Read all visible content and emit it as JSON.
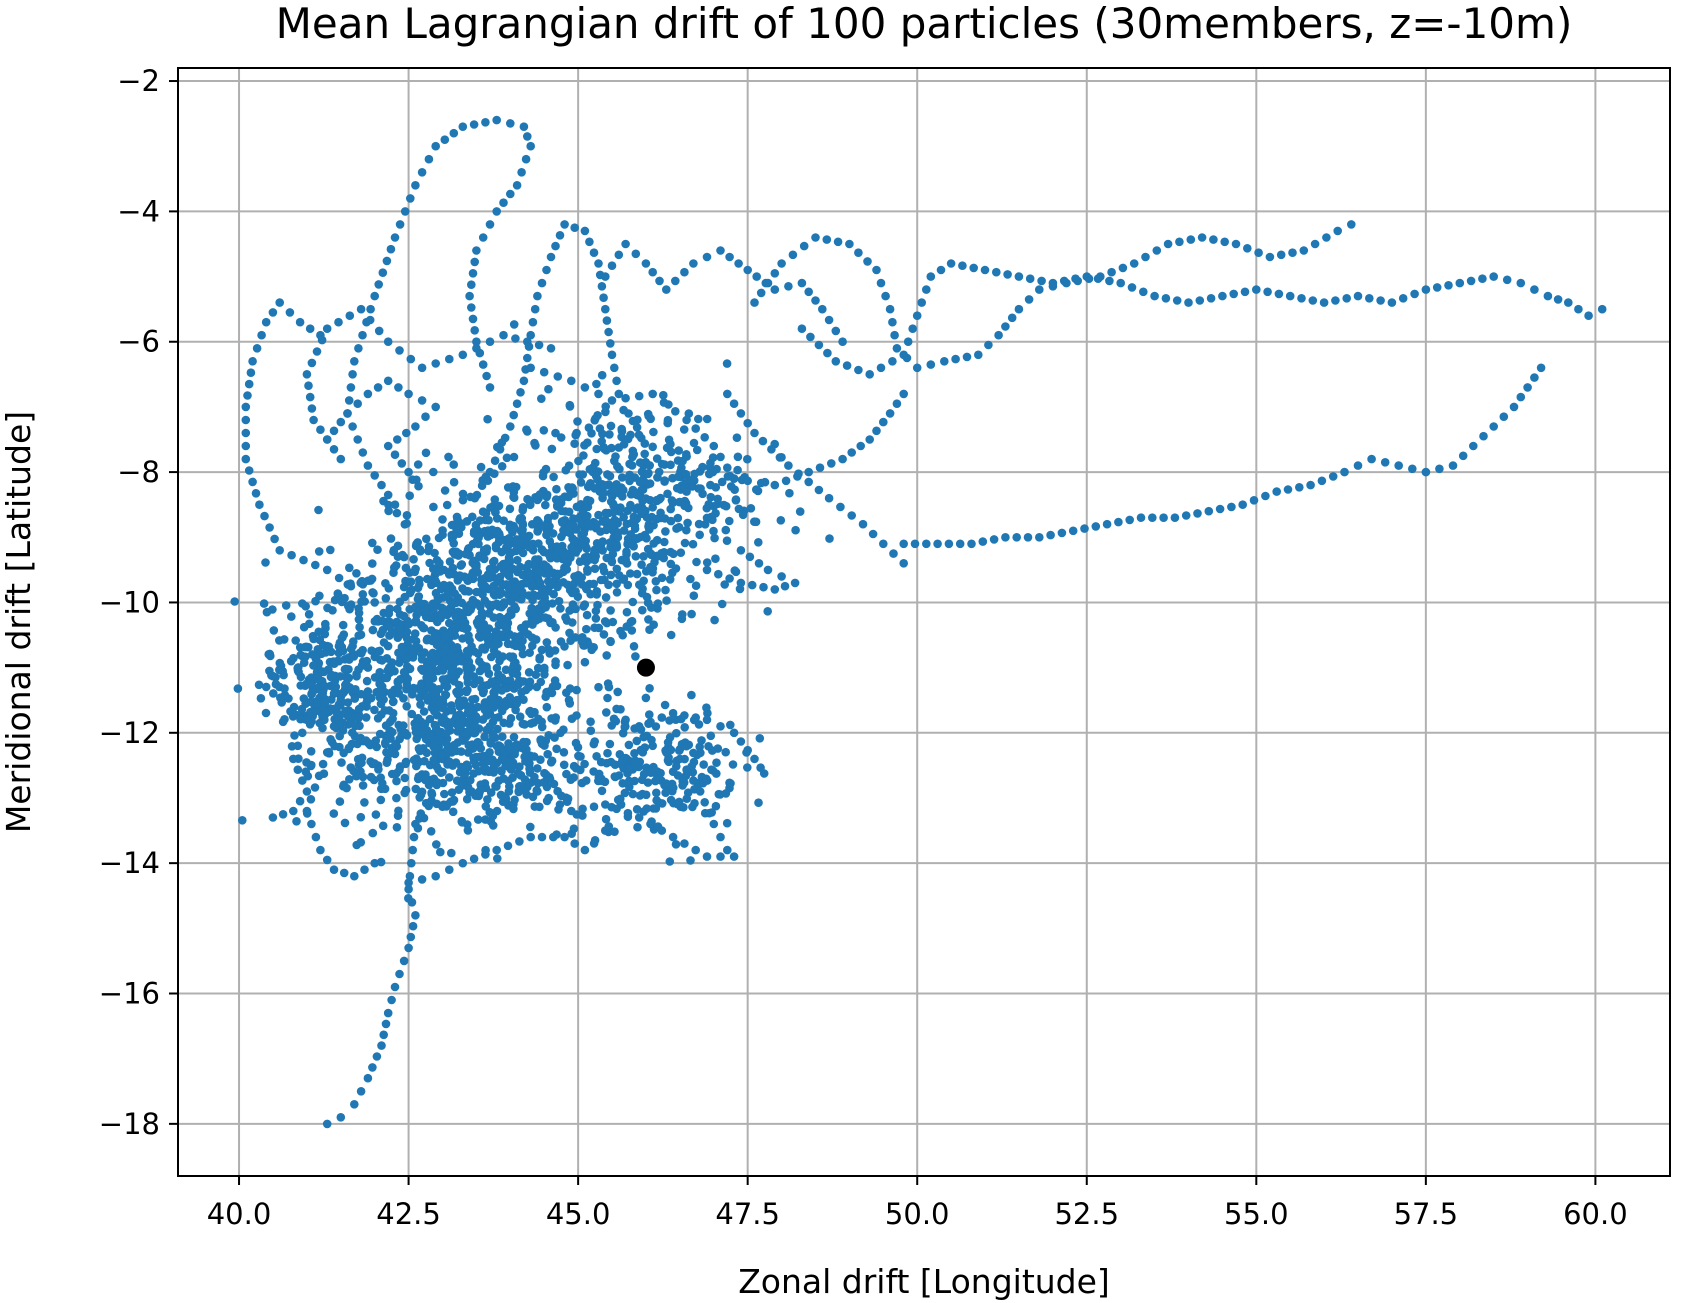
{
  "chart_data": {
    "type": "scatter",
    "title": "Mean Lagrangian drift of 100 particles (30members, z=-10m)",
    "xlabel": "Zonal drift [Longitude]",
    "ylabel": "Meridional drift [Latitude]",
    "xlim": [
      39.1,
      61.1
    ],
    "ylim": [
      -18.8,
      -1.8
    ],
    "xticks": [
      40.0,
      42.5,
      45.0,
      47.5,
      50.0,
      52.5,
      55.0,
      57.5,
      60.0
    ],
    "xtick_labels": [
      "40.0",
      "42.5",
      "45.0",
      "47.5",
      "50.0",
      "52.5",
      "55.0",
      "57.5",
      "60.0"
    ],
    "yticks": [
      -2,
      -4,
      -6,
      -8,
      -10,
      -12,
      -14,
      -16,
      -18
    ],
    "ytick_labels": [
      "−2",
      "−4",
      "−6",
      "−8",
      "−10",
      "−12",
      "−14",
      "−16",
      "−18"
    ],
    "grid": true,
    "colors": {
      "particles": "#1f77b4",
      "origin": "#000000"
    },
    "release_point": {
      "x": 46.0,
      "y": -11.0
    },
    "series": [
      {
        "trajectories": [
          [
            [
              44.0,
              -11.2
            ],
            [
              43.5,
              -11.8
            ],
            [
              43.0,
              -12.6
            ],
            [
              42.6,
              -13.4
            ],
            [
              42.5,
              -14.4
            ],
            [
              42.6,
              -14.8
            ],
            [
              42.5,
              -15.3
            ],
            [
              42.3,
              -15.9
            ],
            [
              42.2,
              -16.3
            ],
            [
              42.1,
              -16.8
            ],
            [
              41.9,
              -17.3
            ],
            [
              41.7,
              -17.7
            ],
            [
              41.5,
              -17.9
            ],
            [
              41.3,
              -18.0
            ]
          ],
          [
            [
              42.5,
              -14.3
            ],
            [
              42.9,
              -14.2
            ],
            [
              43.3,
              -14.0
            ],
            [
              43.8,
              -13.8
            ],
            [
              44.3,
              -13.6
            ],
            [
              44.8,
              -13.6
            ],
            [
              45.1,
              -13.8
            ],
            [
              45.4,
              -13.5
            ]
          ],
          [
            [
              41.5,
              -11.5
            ],
            [
              41.3,
              -12.3
            ],
            [
              41.0,
              -13.2
            ],
            [
              41.2,
              -13.8
            ],
            [
              41.4,
              -14.1
            ],
            [
              41.7,
              -14.2
            ],
            [
              42.0,
              -14.0
            ]
          ],
          [
            [
              42.0,
              -10.0
            ],
            [
              41.3,
              -9.5
            ],
            [
              40.6,
              -9.2
            ],
            [
              40.3,
              -8.5
            ],
            [
              40.1,
              -7.8
            ],
            [
              40.1,
              -7.0
            ],
            [
              40.2,
              -6.3
            ],
            [
              40.4,
              -5.7
            ],
            [
              40.6,
              -5.4
            ],
            [
              40.9,
              -5.7
            ],
            [
              41.2,
              -5.9
            ]
          ],
          [
            [
              42.3,
              -8.5
            ],
            [
              41.9,
              -7.9
            ],
            [
              41.6,
              -7.1
            ],
            [
              41.7,
              -6.3
            ],
            [
              42.0,
              -5.3
            ],
            [
              42.3,
              -4.4
            ],
            [
              42.6,
              -3.6
            ],
            [
              42.9,
              -3.0
            ],
            [
              43.3,
              -2.7
            ],
            [
              43.8,
              -2.6
            ],
            [
              44.2,
              -2.7
            ],
            [
              44.3,
              -3.0
            ],
            [
              44.1,
              -3.6
            ],
            [
              43.8,
              -4.0
            ],
            [
              43.5,
              -4.6
            ],
            [
              43.4,
              -5.3
            ],
            [
              43.5,
              -6.0
            ],
            [
              43.7,
              -6.7
            ]
          ],
          [
            [
              41.5,
              -7.8
            ],
            [
              41.1,
              -7.2
            ],
            [
              41.0,
              -6.5
            ],
            [
              41.3,
              -5.8
            ],
            [
              41.8,
              -5.5
            ],
            [
              42.2,
              -6.0
            ],
            [
              42.7,
              -6.4
            ],
            [
              43.3,
              -6.2
            ],
            [
              43.9,
              -5.9
            ],
            [
              44.6,
              -6.1
            ]
          ],
          [
            [
              42.5,
              -8.0
            ],
            [
              42.2,
              -7.6
            ],
            [
              42.6,
              -7.3
            ],
            [
              42.9,
              -7.0
            ],
            [
              42.5,
              -6.8
            ],
            [
              42.2,
              -6.6
            ],
            [
              41.9,
              -6.8
            ],
            [
              41.6,
              -7.1
            ],
            [
              41.3,
              -7.5
            ]
          ],
          [
            [
              43.7,
              -8.0
            ],
            [
              44.0,
              -7.3
            ],
            [
              44.2,
              -6.6
            ],
            [
              44.3,
              -5.9
            ],
            [
              44.4,
              -5.3
            ],
            [
              44.6,
              -4.7
            ],
            [
              44.8,
              -4.2
            ],
            [
              45.1,
              -4.3
            ],
            [
              45.3,
              -4.8
            ],
            [
              45.4,
              -5.5
            ],
            [
              45.5,
              -6.2
            ],
            [
              45.6,
              -6.8
            ]
          ],
          [
            [
              45.4,
              -5.0
            ],
            [
              45.7,
              -4.5
            ],
            [
              46.0,
              -4.8
            ],
            [
              46.3,
              -5.2
            ],
            [
              46.7,
              -4.8
            ],
            [
              47.1,
              -4.6
            ],
            [
              47.5,
              -4.9
            ],
            [
              47.9,
              -5.2
            ],
            [
              48.3,
              -5.1
            ],
            [
              48.6,
              -5.5
            ],
            [
              48.9,
              -6.0
            ]
          ],
          [
            [
              47.6,
              -5.4
            ],
            [
              48.0,
              -4.8
            ],
            [
              48.5,
              -4.4
            ],
            [
              49.0,
              -4.5
            ],
            [
              49.4,
              -4.9
            ],
            [
              49.6,
              -5.5
            ],
            [
              49.7,
              -6.1
            ],
            [
              50.0,
              -6.4
            ],
            [
              50.4,
              -6.3
            ],
            [
              50.9,
              -6.2
            ],
            [
              51.2,
              -5.9
            ],
            [
              51.5,
              -5.5
            ],
            [
              51.8,
              -5.2
            ],
            [
              52.2,
              -5.1
            ],
            [
              52.7,
              -5.0
            ],
            [
              53.2,
              -4.8
            ],
            [
              53.7,
              -4.5
            ],
            [
              54.2,
              -4.4
            ],
            [
              54.7,
              -4.5
            ],
            [
              55.2,
              -4.7
            ],
            [
              55.7,
              -4.6
            ],
            [
              56.2,
              -4.3
            ],
            [
              56.4,
              -4.2
            ]
          ],
          [
            [
              48.3,
              -5.8
            ],
            [
              48.8,
              -6.3
            ],
            [
              49.3,
              -6.5
            ],
            [
              49.8,
              -6.2
            ],
            [
              50.0,
              -5.6
            ],
            [
              50.2,
              -5.0
            ],
            [
              50.5,
              -4.8
            ],
            [
              51.0,
              -4.9
            ],
            [
              51.5,
              -5.0
            ],
            [
              52.0,
              -5.1
            ],
            [
              52.5,
              -5.0
            ],
            [
              53.0,
              -5.1
            ],
            [
              53.5,
              -5.3
            ],
            [
              54.0,
              -5.4
            ],
            [
              54.5,
              -5.3
            ],
            [
              55.0,
              -5.2
            ],
            [
              55.5,
              -5.3
            ],
            [
              56.0,
              -5.4
            ],
            [
              56.5,
              -5.3
            ],
            [
              57.0,
              -5.4
            ],
            [
              57.5,
              -5.2
            ],
            [
              58.0,
              -5.1
            ],
            [
              58.5,
              -5.0
            ],
            [
              58.9,
              -5.1
            ],
            [
              59.3,
              -5.3
            ],
            [
              59.6,
              -5.4
            ],
            [
              59.9,
              -5.6
            ],
            [
              60.1,
              -5.5
            ]
          ],
          [
            [
              47.2,
              -6.8
            ],
            [
              47.6,
              -7.4
            ],
            [
              48.1,
              -7.9
            ],
            [
              48.7,
              -8.4
            ],
            [
              49.2,
              -8.8
            ],
            [
              49.5,
              -9.1
            ],
            [
              49.8,
              -9.4
            ]
          ],
          [
            [
              46.6,
              -8.3
            ],
            [
              47.3,
              -8.1
            ],
            [
              47.9,
              -8.2
            ],
            [
              48.4,
              -8.0
            ],
            [
              48.9,
              -7.8
            ],
            [
              49.3,
              -7.5
            ],
            [
              49.6,
              -7.1
            ],
            [
              49.8,
              -6.8
            ]
          ],
          [
            [
              49.8,
              -9.1
            ],
            [
              50.3,
              -9.1
            ],
            [
              50.8,
              -9.1
            ],
            [
              51.3,
              -9.0
            ],
            [
              51.8,
              -9.0
            ],
            [
              52.3,
              -8.9
            ],
            [
              52.8,
              -8.8
            ],
            [
              53.3,
              -8.7
            ],
            [
              53.8,
              -8.7
            ],
            [
              54.3,
              -8.6
            ],
            [
              54.8,
              -8.5
            ],
            [
              55.3,
              -8.3
            ],
            [
              55.8,
              -8.2
            ],
            [
              56.3,
              -8.0
            ],
            [
              56.7,
              -7.8
            ],
            [
              57.1,
              -7.9
            ],
            [
              57.5,
              -8.0
            ],
            [
              57.9,
              -7.9
            ],
            [
              58.2,
              -7.6
            ],
            [
              58.5,
              -7.3
            ],
            [
              58.8,
              -7.0
            ],
            [
              59.0,
              -6.7
            ],
            [
              59.2,
              -6.4
            ]
          ],
          [
            [
              47.4,
              -9.2
            ],
            [
              47.8,
              -9.5
            ],
            [
              48.2,
              -9.7
            ],
            [
              47.9,
              -9.8
            ],
            [
              47.4,
              -9.7
            ],
            [
              46.9,
              -9.5
            ]
          ],
          [
            [
              44.3,
              -6.4
            ],
            [
              44.9,
              -6.6
            ],
            [
              45.5,
              -6.9
            ],
            [
              46.1,
              -6.8
            ],
            [
              46.6,
              -7.2
            ],
            [
              47.0,
              -7.6
            ],
            [
              47.3,
              -8.1
            ]
          ],
          [
            [
              45.3,
              -11.3
            ],
            [
              45.7,
              -11.8
            ],
            [
              46.1,
              -12.2
            ],
            [
              46.5,
              -12.4
            ],
            [
              46.8,
              -12.9
            ],
            [
              47.0,
              -13.4
            ],
            [
              47.2,
              -13.8
            ]
          ],
          [
            [
              45.9,
              -11.9
            ],
            [
              46.4,
              -11.7
            ],
            [
              46.9,
              -11.8
            ],
            [
              47.3,
              -12.0
            ],
            [
              47.6,
              -12.4
            ]
          ],
          [
            [
              43.9,
              -12.4
            ],
            [
              44.4,
              -12.9
            ],
            [
              44.9,
              -13.2
            ],
            [
              45.4,
              -13.1
            ],
            [
              45.9,
              -13.3
            ],
            [
              46.4,
              -13.6
            ],
            [
              46.9,
              -13.9
            ],
            [
              47.3,
              -13.9
            ]
          ],
          [
            [
              41.9,
              -11.0
            ],
            [
              41.4,
              -11.4
            ],
            [
              41.0,
              -11.8
            ],
            [
              40.8,
              -12.4
            ],
            [
              41.0,
              -12.9
            ],
            [
              40.8,
              -13.2
            ],
            [
              40.5,
              -13.3
            ]
          ]
        ],
        "clusters": [
          {
            "x": 43.0,
            "y": -11.0,
            "sx": 1.1,
            "sy": 1.1,
            "weight": 0.3
          },
          {
            "x": 44.3,
            "y": -9.5,
            "sx": 1.3,
            "sy": 0.9,
            "weight": 0.25
          },
          {
            "x": 43.5,
            "y": -12.5,
            "sx": 1.3,
            "sy": 0.7,
            "weight": 0.15
          },
          {
            "x": 45.8,
            "y": -8.3,
            "sx": 1.1,
            "sy": 0.9,
            "weight": 0.15
          },
          {
            "x": 41.2,
            "y": -11.2,
            "sx": 0.5,
            "sy": 0.7,
            "weight": 0.08
          },
          {
            "x": 46.3,
            "y": -12.5,
            "sx": 0.7,
            "sy": 0.6,
            "weight": 0.07
          }
        ]
      }
    ]
  }
}
